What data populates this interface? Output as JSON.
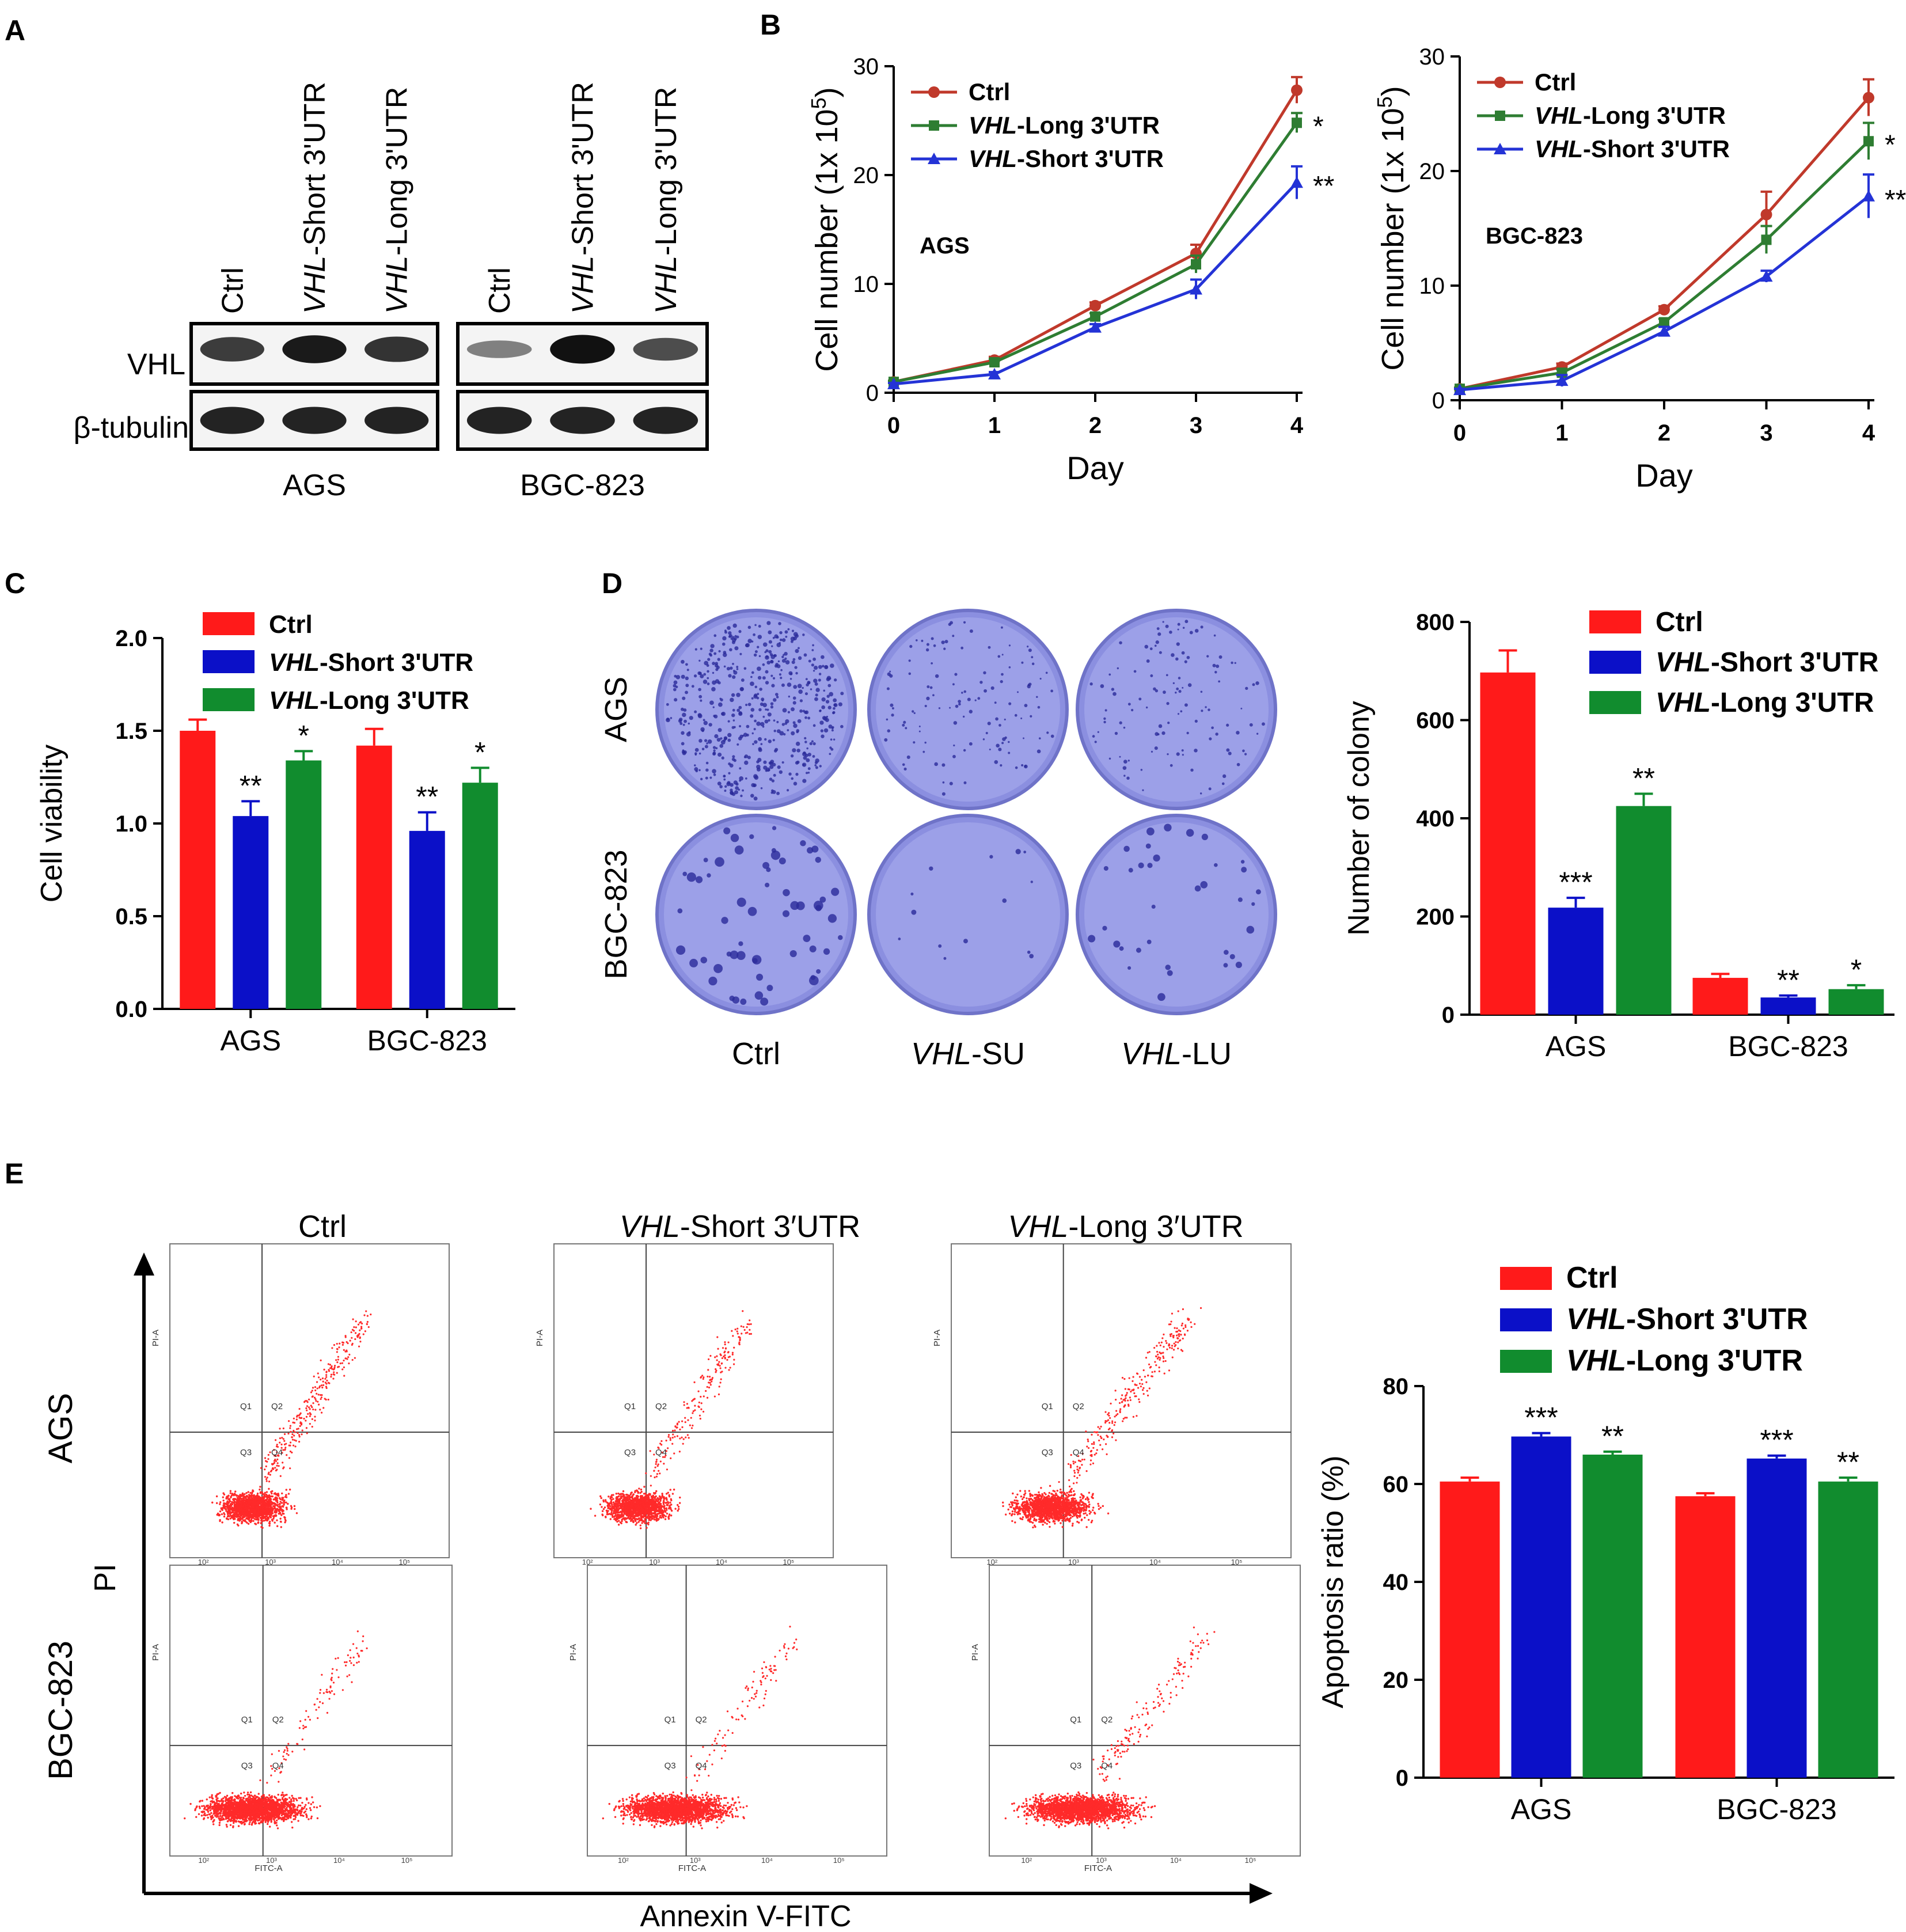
{
  "figure": {
    "panel_letters": [
      "A",
      "B",
      "C",
      "D",
      "E"
    ]
  },
  "colors": {
    "ctrl": "#ff1a1a",
    "short": "#0b10c8",
    "long": "#118c2e",
    "line_ctrl": "#c0392b",
    "line_long": "#2e7d32",
    "line_short": "#2433d6",
    "dot": "#ff2a2a"
  },
  "panel_a": {
    "groups": [
      {
        "cell_line": "AGS",
        "lanes": [
          {
            "prefix": "",
            "name": "Ctrl"
          },
          {
            "prefix": "VHL",
            "name": "-Short 3'UTR"
          },
          {
            "prefix": "VHL",
            "name": "-Long 3'UTR"
          }
        ]
      },
      {
        "cell_line": "BGC-823",
        "lanes": [
          {
            "prefix": "",
            "name": "Ctrl"
          },
          {
            "prefix": "VHL",
            "name": "-Short 3'UTR"
          },
          {
            "prefix": "VHL",
            "name": "-Long 3'UTR"
          }
        ]
      }
    ],
    "row_labels": [
      "VHL",
      "β-tubulin"
    ],
    "band_intensity": {
      "AGS": {
        "VHL": [
          0.75,
          0.95,
          0.8
        ],
        "tubulin": [
          0.9,
          0.9,
          0.9
        ]
      },
      "BGC-823": {
        "VHL": [
          0.35,
          1.0,
          0.65
        ],
        "tubulin": [
          0.9,
          0.9,
          0.9
        ]
      }
    }
  },
  "panel_d_plates": {
    "row_labels": [
      "AGS",
      "BGC-823"
    ],
    "col_labels": [
      {
        "prefix": "",
        "name": "Ctrl"
      },
      {
        "prefix": "VHL",
        "name": "-SU"
      },
      {
        "prefix": "VHL",
        "name": "-LU"
      }
    ]
  },
  "panel_e_flow": {
    "col_titles": [
      {
        "prefix": "",
        "name": "Ctrl"
      },
      {
        "prefix": "VHL",
        "name": "-Short 3′UTR"
      },
      {
        "prefix": "VHL",
        "name": "-Long 3′UTR"
      }
    ],
    "row_labels": [
      "AGS",
      "BGC-823"
    ],
    "y_axis": "PI",
    "x_axis": "Annexin V-FITC",
    "quadrants": [
      "Q1",
      "Q2",
      "Q3",
      "Q4"
    ],
    "small_x_label": "FITC-A",
    "small_y_label": "PI-A",
    "log_ticks": [
      "10²",
      "10³",
      "10⁴",
      "10⁵"
    ],
    "upper_right_density": [
      [
        0.6,
        0.4,
        0.55
      ],
      [
        0.2,
        0.2,
        0.3
      ]
    ]
  },
  "chart_data": [
    {
      "id": "B-AGS",
      "type": "line",
      "inset_label": "AGS",
      "xlabel": "Day",
      "ylabel": "Cell number (1x 10",
      "ylabel_sup": "5",
      "x": [
        0,
        1,
        2,
        3,
        4
      ],
      "xlim": [
        0,
        4
      ],
      "ylim": [
        0,
        30
      ],
      "yticks": [
        0,
        10,
        20,
        30
      ],
      "series": [
        {
          "key": "ctrl",
          "prefix": "",
          "name": "Ctrl",
          "values": [
            1.0,
            3.0,
            8.0,
            12.8,
            27.8
          ],
          "err": [
            0.1,
            0.3,
            0.3,
            0.8,
            1.2
          ],
          "marker": "circle",
          "sig": ""
        },
        {
          "key": "long",
          "prefix": "VHL",
          "name": "-Long 3'UTR",
          "values": [
            1.0,
            2.8,
            7.0,
            11.8,
            24.8
          ],
          "err": [
            0.1,
            0.3,
            0.3,
            0.8,
            0.9
          ],
          "marker": "square",
          "sig": "*"
        },
        {
          "key": "short",
          "prefix": "VHL",
          "name": "-Short 3'UTR",
          "values": [
            0.8,
            1.7,
            6.0,
            9.5,
            19.3
          ],
          "err": [
            0.1,
            0.2,
            0.3,
            0.9,
            1.5
          ],
          "marker": "triangle",
          "sig": "**"
        }
      ]
    },
    {
      "id": "B-BGC",
      "type": "line",
      "inset_label": "BGC-823",
      "xlabel": "Day",
      "ylabel": "Cell number (1x 10",
      "ylabel_sup": "5",
      "x": [
        0,
        1,
        2,
        3,
        4
      ],
      "xlim": [
        0,
        4
      ],
      "ylim": [
        0,
        30
      ],
      "yticks": [
        0,
        10,
        20,
        30
      ],
      "series": [
        {
          "key": "ctrl",
          "prefix": "",
          "name": "Ctrl",
          "values": [
            1.0,
            2.9,
            7.9,
            16.2,
            26.4
          ],
          "err": [
            0.1,
            0.3,
            0.3,
            2.0,
            1.6
          ],
          "marker": "circle",
          "sig": ""
        },
        {
          "key": "long",
          "prefix": "VHL",
          "name": "-Long 3'UTR",
          "values": [
            1.0,
            2.4,
            6.8,
            14.0,
            22.6
          ],
          "err": [
            0.1,
            0.3,
            0.3,
            1.2,
            1.6
          ],
          "marker": "square",
          "sig": "*"
        },
        {
          "key": "short",
          "prefix": "VHL",
          "name": "-Short 3'UTR",
          "values": [
            0.9,
            1.7,
            6.0,
            10.8,
            17.8
          ],
          "err": [
            0.1,
            0.5,
            0.4,
            0.5,
            1.9
          ],
          "marker": "triangle",
          "sig": "**"
        }
      ]
    },
    {
      "id": "C",
      "type": "bar",
      "ylabel": "Cell viability",
      "categories": [
        "AGS",
        "BGC-823"
      ],
      "ylim": [
        0,
        2.0
      ],
      "yticks": [
        "0.0",
        "0.5",
        "1.0",
        "1.5",
        "2.0"
      ],
      "series": [
        {
          "key": "ctrl",
          "prefix": "",
          "name": "Ctrl",
          "values": [
            1.5,
            1.42
          ],
          "err": [
            0.06,
            0.09
          ],
          "sig": [
            "",
            ""
          ]
        },
        {
          "key": "short",
          "prefix": "VHL",
          "name": "-Short 3'UTR",
          "values": [
            1.04,
            0.96
          ],
          "err": [
            0.08,
            0.1
          ],
          "sig": [
            "**",
            "**"
          ]
        },
        {
          "key": "long",
          "prefix": "VHL",
          "name": "-Long 3'UTR",
          "values": [
            1.34,
            1.22
          ],
          "err": [
            0.05,
            0.08
          ],
          "sig": [
            "*",
            "*"
          ]
        }
      ]
    },
    {
      "id": "D",
      "type": "bar",
      "ylabel": "Number of colony",
      "categories": [
        "AGS",
        "BGC-823"
      ],
      "ylim": [
        0,
        800
      ],
      "yticks": [
        "0",
        "200",
        "400",
        "600",
        "800"
      ],
      "series": [
        {
          "key": "ctrl",
          "prefix": "",
          "name": "Ctrl",
          "values": [
            697,
            75
          ],
          "err": [
            45,
            8
          ],
          "sig": [
            "",
            ""
          ]
        },
        {
          "key": "short",
          "prefix": "VHL",
          "name": "-Short 3'UTR",
          "values": [
            218,
            35
          ],
          "err": [
            20,
            4
          ],
          "sig": [
            "***",
            "**"
          ]
        },
        {
          "key": "long",
          "prefix": "VHL",
          "name": "-Long 3'UTR",
          "values": [
            425,
            52
          ],
          "err": [
            25,
            8
          ],
          "sig": [
            "**",
            "*"
          ]
        }
      ]
    },
    {
      "id": "E",
      "type": "bar",
      "ylabel": "Apoptosis ratio (%)",
      "categories": [
        "AGS",
        "BGC-823"
      ],
      "ylim": [
        0,
        80
      ],
      "yticks": [
        "0",
        "20",
        "40",
        "60",
        "80"
      ],
      "series": [
        {
          "key": "ctrl",
          "prefix": "",
          "name": "Ctrl",
          "values": [
            60.5,
            57.5
          ],
          "err": [
            0.8,
            0.6
          ],
          "sig": [
            "",
            ""
          ]
        },
        {
          "key": "short",
          "prefix": "VHL",
          "name": "-Short 3'UTR",
          "values": [
            69.7,
            65.2
          ],
          "err": [
            0.7,
            0.6
          ],
          "sig": [
            "***",
            "***"
          ]
        },
        {
          "key": "long",
          "prefix": "VHL",
          "name": "-Long 3'UTR",
          "values": [
            66.0,
            60.5
          ],
          "err": [
            0.6,
            0.8
          ],
          "sig": [
            "**",
            "**"
          ]
        }
      ]
    }
  ]
}
